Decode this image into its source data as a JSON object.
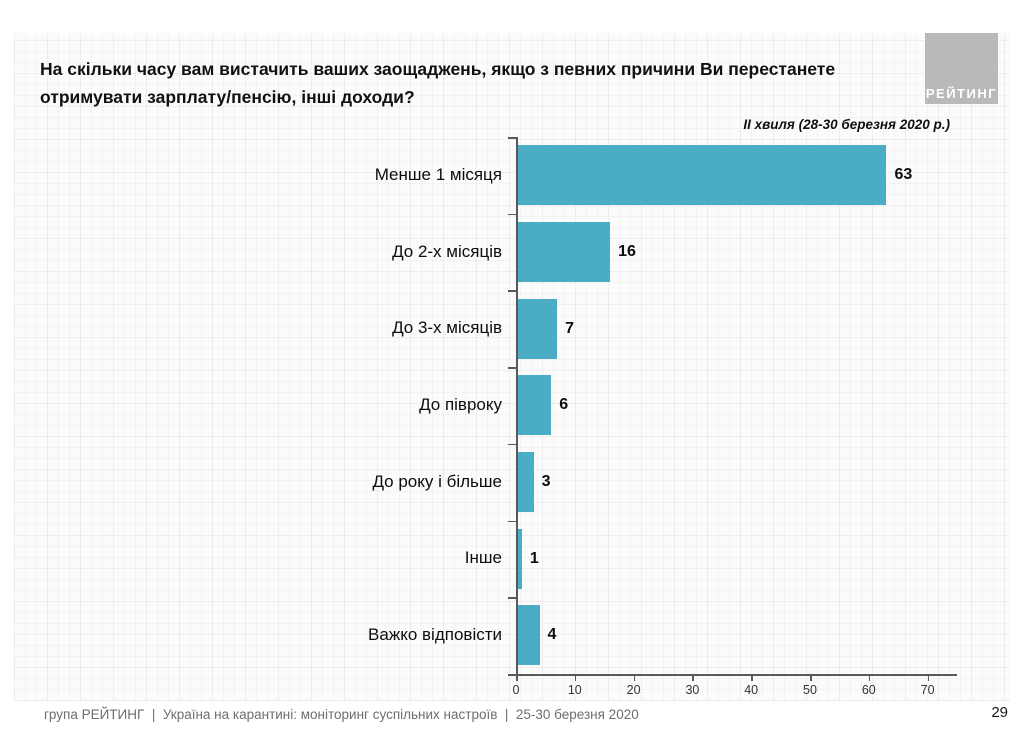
{
  "slide": {
    "title": "На скільки часу вам вистачить ваших заощаджень, якщо з певних причини Ви перестанете отримувати зарплату/пенсію, інші доходи?",
    "subtitle": "ІІ хвиля (28-30 березня 2020 р.)",
    "logo_text": "РЕЙТИНГ",
    "footer_text": "група РЕЙТИНГ  |  Україна на карантині: моніторинг суспільних настроїв  |  25-30 березня 2020",
    "page_number": "29"
  },
  "colors": {
    "bar": "#4BACC6",
    "axis": "#595959",
    "logo_background": "#b9b9b9",
    "footer_text": "#6e6e6e",
    "background_grid": "#fbfbfb"
  },
  "chart_data": {
    "type": "bar",
    "orientation": "horizontal",
    "title": "На скільки часу вам вистачить ваших заощаджень, якщо з певних причини Ви перестанете отримувати зарплату/пенсію, інші доходи?",
    "subtitle": "ІІ хвиля (28-30 березня 2020 р.)",
    "categories": [
      "Менше 1 місяця",
      "До 2-х місяців",
      "До 3-х місяців",
      "До півроку",
      "До року і більше",
      "Інше",
      "Важко відповісти"
    ],
    "values": [
      63,
      16,
      7,
      6,
      3,
      1,
      4
    ],
    "data_labels": true,
    "bar_color": "#4BACC6",
    "xlim": [
      0,
      75
    ],
    "x_ticks": [
      0,
      10,
      20,
      30,
      40,
      50,
      60,
      70
    ],
    "grid": false,
    "legend": "none"
  }
}
